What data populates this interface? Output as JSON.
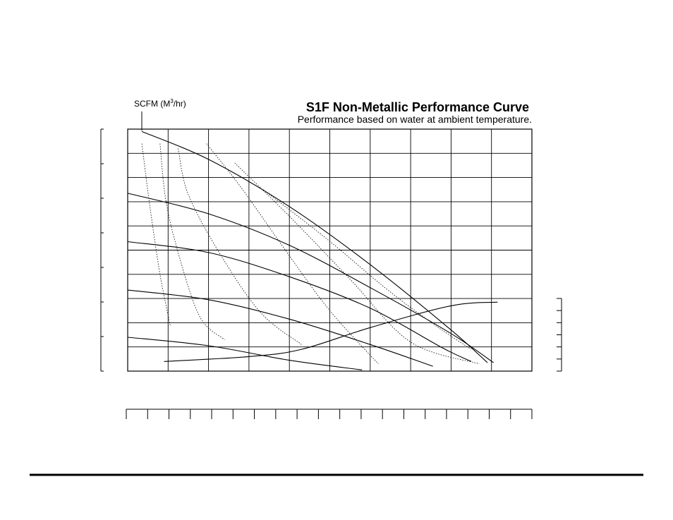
{
  "chart_data": {
    "type": "line",
    "title": "S1F Non-Metallic Performance Curve",
    "subtitle": "Performance based on water at ambient temperature.",
    "air_label": {
      "pre": "SCFM (M",
      "sup": "3",
      "post": "/hr)"
    },
    "xlim": [
      0,
      10
    ],
    "ylim": [
      0,
      10
    ],
    "grid": true,
    "head_curves": [
      {
        "points": [
          [
            0.35,
            9.9
          ],
          [
            2,
            8.75
          ],
          [
            4,
            6.8
          ],
          [
            6,
            4.4
          ],
          [
            8,
            1.7
          ],
          [
            8.9,
            0.35
          ]
        ]
      },
      {
        "points": [
          [
            0,
            7.35
          ],
          [
            2,
            6.5
          ],
          [
            4,
            5.2
          ],
          [
            6,
            3.45
          ],
          [
            8,
            1.55
          ],
          [
            9.05,
            0.35
          ]
        ]
      },
      {
        "points": [
          [
            0,
            5.35
          ],
          [
            2,
            4.9
          ],
          [
            4,
            3.9
          ],
          [
            6,
            2.6
          ],
          [
            7.8,
            0.95
          ],
          [
            8.5,
            0.4
          ]
        ]
      },
      {
        "points": [
          [
            0,
            3.35
          ],
          [
            2,
            2.95
          ],
          [
            4,
            2.15
          ],
          [
            6,
            1.1
          ],
          [
            7.55,
            0.2
          ]
        ]
      },
      {
        "points": [
          [
            0,
            1.4
          ],
          [
            2,
            1.05
          ],
          [
            4,
            0.45
          ],
          [
            5.8,
            0.05
          ]
        ]
      }
    ],
    "air_curves": [
      {
        "points": [
          [
            0.35,
            9.4
          ],
          [
            0.55,
            6.8
          ],
          [
            0.8,
            4.0
          ],
          [
            1.05,
            1.9
          ]
        ]
      },
      {
        "points": [
          [
            0.8,
            9.4
          ],
          [
            0.95,
            7.0
          ],
          [
            1.3,
            4.6
          ],
          [
            1.8,
            2.2
          ],
          [
            2.4,
            1.3
          ]
        ]
      },
      {
        "points": [
          [
            1.25,
            9.2
          ],
          [
            1.5,
            7.3
          ],
          [
            2.3,
            4.8
          ],
          [
            3.3,
            2.4
          ],
          [
            4.3,
            1.1
          ]
        ]
      },
      {
        "points": [
          [
            1.95,
            9.4
          ],
          [
            2.8,
            7.6
          ],
          [
            3.9,
            5.0
          ],
          [
            5.0,
            2.5
          ],
          [
            6.2,
            0.3
          ]
        ]
      },
      {
        "points": [
          [
            2.65,
            8.6
          ],
          [
            4.0,
            6.4
          ],
          [
            5.5,
            3.8
          ],
          [
            7.0,
            1.2
          ],
          [
            8.7,
            0.3
          ]
        ]
      },
      {
        "points": [
          [
            3.35,
            7.5
          ],
          [
            4.9,
            5.5
          ],
          [
            6.4,
            3.4
          ],
          [
            7.6,
            1.9
          ],
          [
            8.5,
            0.9
          ]
        ]
      }
    ],
    "npsh_curve": {
      "points": [
        [
          0.9,
          0.4
        ],
        [
          3,
          0.6
        ],
        [
          4.3,
          0.9
        ],
        [
          6,
          1.8
        ],
        [
          8,
          2.7
        ],
        [
          9.15,
          2.85
        ]
      ]
    }
  }
}
